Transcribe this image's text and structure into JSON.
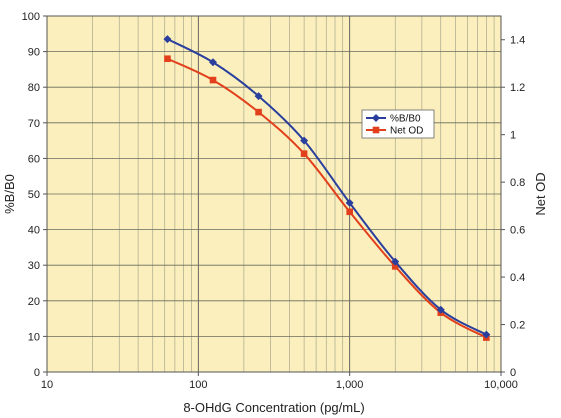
{
  "chart_data": {
    "type": "line",
    "xscale": "log",
    "xlim": [
      10,
      10000
    ],
    "ylim": [
      0,
      100
    ],
    "y2lim": [
      0,
      1.5
    ],
    "grid": true,
    "background_color": "#fbf0bd",
    "legend_position": "right-center",
    "xlabel": "8-OHdG Concentration (pg/mL)",
    "ylabel": "%B/B0",
    "y2label": "Net OD",
    "x_ticks": [
      10,
      100,
      1000,
      10000
    ],
    "x_tick_labels": [
      "10",
      "100",
      "1,000",
      "10,000"
    ],
    "y_ticks": [
      0,
      10,
      20,
      30,
      40,
      50,
      60,
      70,
      80,
      90,
      100
    ],
    "y_tick_labels": [
      "0",
      "10",
      "20",
      "30",
      "40",
      "50",
      "60",
      "70",
      "80",
      "90",
      "100"
    ],
    "y2_ticks": [
      0,
      0.2,
      0.4,
      0.6,
      0.8,
      1.0,
      1.2,
      1.4
    ],
    "y2_tick_labels": [
      "0",
      "0.2",
      "0.4",
      "0.6",
      "0.8",
      "1",
      "1.2",
      "1.4"
    ],
    "x": [
      62.5,
      125,
      250,
      500,
      1000,
      2000,
      4000,
      8000
    ],
    "series": [
      {
        "name": "%B/B0",
        "axis": "left",
        "color": "#2a3f9d",
        "marker": "diamond",
        "values": [
          93.5,
          87,
          77.5,
          65,
          47.5,
          31,
          17.5,
          10.5
        ]
      },
      {
        "name": "Net OD",
        "axis": "right",
        "color": "#e2401c",
        "marker": "square",
        "values": [
          1.32,
          1.23,
          1.095,
          0.92,
          0.675,
          0.445,
          0.25,
          0.145
        ]
      }
    ]
  }
}
